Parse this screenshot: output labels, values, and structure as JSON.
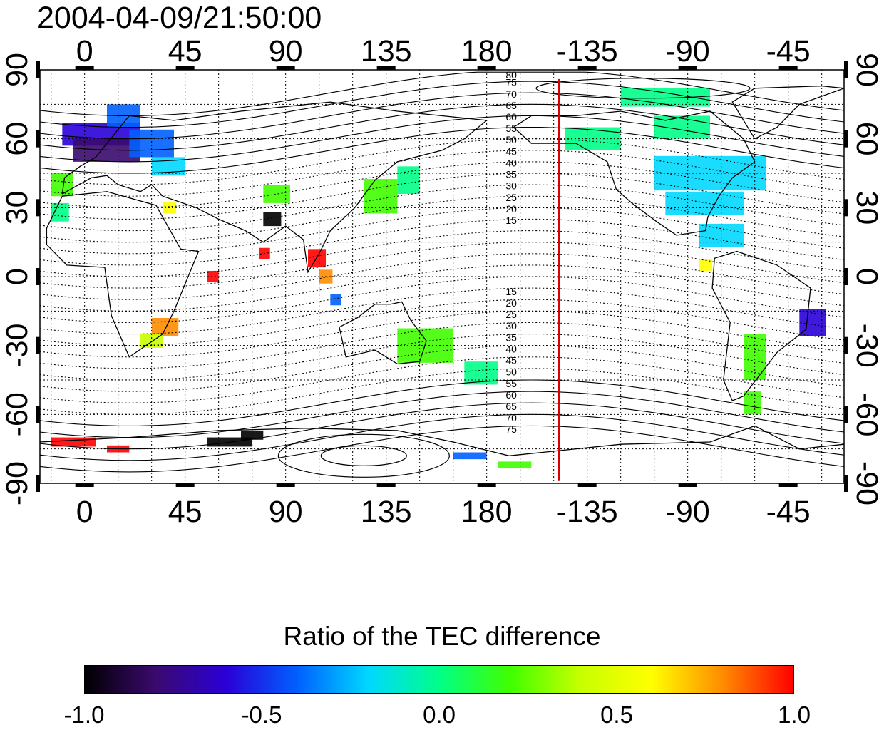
{
  "title": "2004-04-09/21:50:00",
  "map": {
    "x_ticks_top": [
      "0",
      "45",
      "90",
      "135",
      "180",
      "-135",
      "-90",
      "-45"
    ],
    "x_ticks_bottom": [
      "0",
      "45",
      "90",
      "135",
      "180",
      "-135",
      "-90",
      "-45"
    ],
    "y_ticks_left": [
      "90",
      "60",
      "30",
      "0",
      "-30",
      "-60",
      "-90"
    ],
    "y_ticks_right": [
      "90",
      "60",
      "30",
      "0",
      "-30",
      "-60",
      "-90"
    ],
    "x_tick_lons": [
      0,
      45,
      90,
      135,
      180,
      225,
      270,
      315
    ],
    "y_tick_lats": [
      90,
      60,
      30,
      0,
      -30,
      -60,
      -90
    ],
    "lon_range": [
      -20,
      340
    ],
    "lat_range": [
      -90,
      90
    ],
    "terminator_lon": 212.5,
    "terminator_color": "#dd0000",
    "contour_labels_north": [
      "80",
      "75",
      "70",
      "65",
      "60",
      "55",
      "50",
      "45",
      "40",
      "35",
      "30",
      "25",
      "20",
      "15"
    ],
    "contour_labels_south": [
      "15",
      "20",
      "25",
      "30",
      "35",
      "40",
      "45",
      "50",
      "55",
      "60",
      "65",
      "70",
      "75"
    ],
    "contour_lats_north": [
      80,
      75,
      70,
      65,
      60,
      55,
      50,
      45,
      40,
      35,
      30,
      25,
      20,
      15
    ],
    "contour_lats_south": [
      -15,
      -20,
      -25,
      -30,
      -35,
      -40,
      -45,
      -50,
      -55,
      -60,
      -65,
      -70,
      -75
    ]
  },
  "colorbar": {
    "title": "Ratio of the TEC difference",
    "ticks": [
      "-1.0",
      "-0.5",
      "0.0",
      "0.5",
      "1.0"
    ],
    "range": [
      -1.0,
      1.0
    ],
    "colors": [
      "#000000",
      "#3a0a6e",
      "#2a00d8",
      "#0060ff",
      "#00d8ff",
      "#00ff88",
      "#40ff00",
      "#c8ff00",
      "#ffff00",
      "#ff8c00",
      "#ff0000"
    ]
  },
  "patches": [
    {
      "lon": -10,
      "lat": 62,
      "w": 35,
      "h": 10,
      "v": -0.7
    },
    {
      "lon": -5,
      "lat": 55,
      "w": 30,
      "h": 10,
      "v": -0.75
    },
    {
      "lon": 10,
      "lat": 70,
      "w": 15,
      "h": 10,
      "v": -0.4
    },
    {
      "lon": 20,
      "lat": 58,
      "w": 20,
      "h": 12,
      "v": -0.45
    },
    {
      "lon": 30,
      "lat": 48,
      "w": 15,
      "h": 8,
      "v": -0.2
    },
    {
      "lon": -15,
      "lat": 40,
      "w": 10,
      "h": 10,
      "v": 0.1
    },
    {
      "lon": -15,
      "lat": 28,
      "w": 8,
      "h": 8,
      "v": 0.0
    },
    {
      "lon": 35,
      "lat": 30,
      "w": 6,
      "h": 5,
      "v": 0.6
    },
    {
      "lon": 80,
      "lat": 25,
      "w": 8,
      "h": 6,
      "v": -0.9
    },
    {
      "lon": 78,
      "lat": 10,
      "w": 5,
      "h": 5,
      "v": 0.9
    },
    {
      "lon": 100,
      "lat": 8,
      "w": 8,
      "h": 8,
      "v": 0.9
    },
    {
      "lon": 105,
      "lat": 0,
      "w": 6,
      "h": 6,
      "v": 0.8
    },
    {
      "lon": 110,
      "lat": -10,
      "w": 5,
      "h": 5,
      "v": -0.5
    },
    {
      "lon": 55,
      "lat": 0,
      "w": 5,
      "h": 5,
      "v": 0.9
    },
    {
      "lon": 30,
      "lat": -22,
      "w": 12,
      "h": 8,
      "v": 0.85
    },
    {
      "lon": 25,
      "lat": -28,
      "w": 10,
      "h": 6,
      "v": 0.3
    },
    {
      "lon": 80,
      "lat": 36,
      "w": 12,
      "h": 8,
      "v": 0.1
    },
    {
      "lon": 125,
      "lat": 35,
      "w": 15,
      "h": 15,
      "v": 0.15
    },
    {
      "lon": 140,
      "lat": 42,
      "w": 10,
      "h": 12,
      "v": 0.0
    },
    {
      "lon": 140,
      "lat": -30,
      "w": 25,
      "h": 15,
      "v": 0.1
    },
    {
      "lon": 170,
      "lat": -42,
      "w": 15,
      "h": 10,
      "v": -0.05
    },
    {
      "lon": 215,
      "lat": 60,
      "w": 25,
      "h": 10,
      "v": -0.1
    },
    {
      "lon": 240,
      "lat": 78,
      "w": 40,
      "h": 8,
      "v": 0.05
    },
    {
      "lon": 255,
      "lat": 65,
      "w": 25,
      "h": 10,
      "v": -0.05
    },
    {
      "lon": 255,
      "lat": 45,
      "w": 50,
      "h": 15,
      "v": -0.15
    },
    {
      "lon": 260,
      "lat": 32,
      "w": 35,
      "h": 10,
      "v": -0.25
    },
    {
      "lon": 275,
      "lat": 18,
      "w": 20,
      "h": 10,
      "v": -0.3
    },
    {
      "lon": 275,
      "lat": 5,
      "w": 6,
      "h": 5,
      "v": 0.6
    },
    {
      "lon": 320,
      "lat": -20,
      "w": 12,
      "h": 12,
      "v": -0.55
    },
    {
      "lon": 295,
      "lat": -35,
      "w": 10,
      "h": 20,
      "v": 0.1
    },
    {
      "lon": 295,
      "lat": -55,
      "w": 8,
      "h": 10,
      "v": 0.2
    },
    {
      "lon": -15,
      "lat": -72,
      "w": 20,
      "h": 4,
      "v": 0.9
    },
    {
      "lon": 10,
      "lat": -75,
      "w": 10,
      "h": 3,
      "v": 0.9
    },
    {
      "lon": 55,
      "lat": -72,
      "w": 20,
      "h": 4,
      "v": -0.9
    },
    {
      "lon": 70,
      "lat": -69,
      "w": 10,
      "h": 4,
      "v": -1.0
    },
    {
      "lon": 165,
      "lat": -78,
      "w": 15,
      "h": 3,
      "v": -0.5
    },
    {
      "lon": 185,
      "lat": -82,
      "w": 15,
      "h": 3,
      "v": 0.1
    }
  ]
}
